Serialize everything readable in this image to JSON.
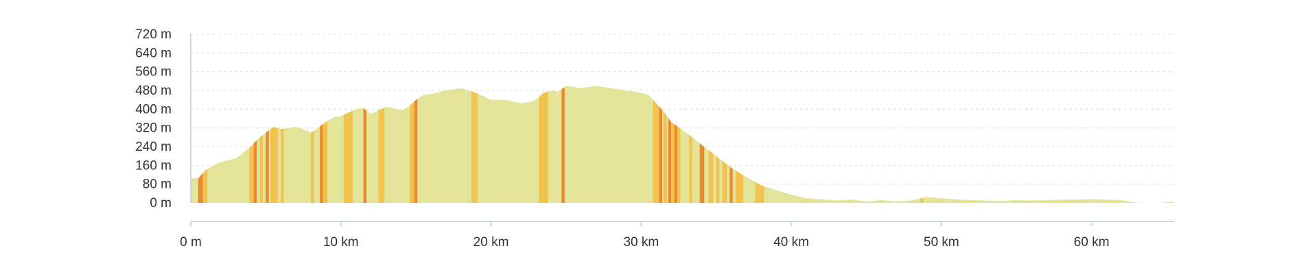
{
  "chart_data": {
    "type": "area",
    "xlabel": "",
    "ylabel": "",
    "x_unit": "km",
    "y_unit": "m",
    "xlim": [
      0,
      65.5
    ],
    "ylim": [
      0,
      720
    ],
    "grid": true,
    "y_ticks": [
      {
        "value": 0,
        "label": "0 m"
      },
      {
        "value": 80,
        "label": "80 m"
      },
      {
        "value": 160,
        "label": "160 m"
      },
      {
        "value": 240,
        "label": "240 m"
      },
      {
        "value": 320,
        "label": "320 m"
      },
      {
        "value": 400,
        "label": "400 m"
      },
      {
        "value": 480,
        "label": "480 m"
      },
      {
        "value": 560,
        "label": "560 m"
      },
      {
        "value": 640,
        "label": "640 m"
      },
      {
        "value": 720,
        "label": "720 m"
      }
    ],
    "x_ticks": [
      {
        "value": 0,
        "label": "0 m"
      },
      {
        "value": 10,
        "label": "10 km"
      },
      {
        "value": 20,
        "label": "20 km"
      },
      {
        "value": 30,
        "label": "30 km"
      },
      {
        "value": 40,
        "label": "40 km"
      },
      {
        "value": 50,
        "label": "50 km"
      },
      {
        "value": 60,
        "label": "60 km"
      }
    ],
    "colors": {
      "flat": "#e3e49a",
      "moderate": "#f2c24f",
      "steep": "#ea8a2e",
      "grid": "#d4d4d4",
      "axis": "#c9d6dc"
    },
    "profile": {
      "x": [
        0,
        0.5,
        1,
        1.5,
        2,
        3,
        4,
        4.5,
        5,
        5.5,
        6,
        7,
        7.5,
        8,
        9,
        9.5,
        10,
        10.5,
        11,
        11.5,
        12,
        12.5,
        13,
        13.5,
        14,
        14.5,
        15,
        15.5,
        16,
        17,
        18,
        19,
        20,
        21,
        22,
        22.5,
        23,
        23.5,
        24,
        24.5,
        25,
        25.5,
        26,
        27,
        28,
        29,
        30,
        30.5,
        31,
        31.5,
        32,
        33,
        34,
        35,
        36,
        37,
        38,
        39,
        40,
        41,
        42,
        43,
        44,
        45,
        46,
        47,
        48,
        49,
        50,
        51,
        52,
        53,
        54,
        55,
        56,
        57,
        58,
        59,
        60,
        61,
        62,
        62.8,
        63.5,
        64.5,
        65.5
      ],
      "y": [
        105,
        105,
        140,
        160,
        175,
        190,
        240,
        275,
        300,
        325,
        315,
        325,
        315,
        300,
        345,
        365,
        370,
        385,
        400,
        405,
        380,
        395,
        410,
        405,
        395,
        410,
        440,
        460,
        465,
        480,
        490,
        470,
        440,
        440,
        425,
        430,
        440,
        470,
        480,
        475,
        500,
        495,
        490,
        500,
        490,
        480,
        470,
        460,
        425,
        390,
        345,
        300,
        250,
        200,
        150,
        110,
        75,
        55,
        35,
        20,
        15,
        10,
        15,
        5,
        12,
        5,
        10,
        25,
        20,
        15,
        12,
        10,
        8,
        12,
        10,
        12,
        14,
        14,
        16,
        14,
        12,
        2,
        0,
        0,
        5
      ]
    },
    "segments": [
      {
        "start": 0.5,
        "end": 0.8,
        "grade": "steep"
      },
      {
        "start": 0.8,
        "end": 1.1,
        "grade": "moderate"
      },
      {
        "start": 3.9,
        "end": 4.2,
        "grade": "moderate"
      },
      {
        "start": 4.2,
        "end": 4.4,
        "grade": "steep"
      },
      {
        "start": 4.6,
        "end": 4.8,
        "grade": "moderate"
      },
      {
        "start": 5.0,
        "end": 5.2,
        "grade": "steep"
      },
      {
        "start": 5.3,
        "end": 5.8,
        "grade": "moderate"
      },
      {
        "start": 6.0,
        "end": 6.2,
        "grade": "moderate"
      },
      {
        "start": 8.0,
        "end": 8.2,
        "grade": "moderate"
      },
      {
        "start": 8.6,
        "end": 8.8,
        "grade": "steep"
      },
      {
        "start": 8.8,
        "end": 9.1,
        "grade": "moderate"
      },
      {
        "start": 10.2,
        "end": 10.8,
        "grade": "moderate"
      },
      {
        "start": 11.5,
        "end": 11.7,
        "grade": "steep"
      },
      {
        "start": 12.5,
        "end": 12.9,
        "grade": "moderate"
      },
      {
        "start": 14.6,
        "end": 14.9,
        "grade": "moderate"
      },
      {
        "start": 14.9,
        "end": 15.1,
        "grade": "steep"
      },
      {
        "start": 18.7,
        "end": 19.1,
        "grade": "moderate"
      },
      {
        "start": 23.2,
        "end": 23.8,
        "grade": "moderate"
      },
      {
        "start": 24.7,
        "end": 24.9,
        "grade": "steep"
      },
      {
        "start": 30.8,
        "end": 31.2,
        "grade": "moderate"
      },
      {
        "start": 31.2,
        "end": 31.4,
        "grade": "steep"
      },
      {
        "start": 31.5,
        "end": 31.7,
        "grade": "moderate"
      },
      {
        "start": 31.8,
        "end": 32.0,
        "grade": "steep"
      },
      {
        "start": 32.0,
        "end": 32.2,
        "grade": "moderate"
      },
      {
        "start": 32.2,
        "end": 32.4,
        "grade": "steep"
      },
      {
        "start": 32.4,
        "end": 32.6,
        "grade": "moderate"
      },
      {
        "start": 33.2,
        "end": 33.4,
        "grade": "moderate"
      },
      {
        "start": 33.9,
        "end": 34.2,
        "grade": "steep"
      },
      {
        "start": 34.5,
        "end": 34.8,
        "grade": "moderate"
      },
      {
        "start": 35.0,
        "end": 35.2,
        "grade": "moderate"
      },
      {
        "start": 35.4,
        "end": 35.7,
        "grade": "moderate"
      },
      {
        "start": 35.9,
        "end": 36.1,
        "grade": "steep"
      },
      {
        "start": 36.3,
        "end": 36.8,
        "grade": "moderate"
      },
      {
        "start": 37.6,
        "end": 38.2,
        "grade": "moderate"
      },
      {
        "start": 48.6,
        "end": 48.8,
        "grade": "moderate"
      }
    ]
  }
}
